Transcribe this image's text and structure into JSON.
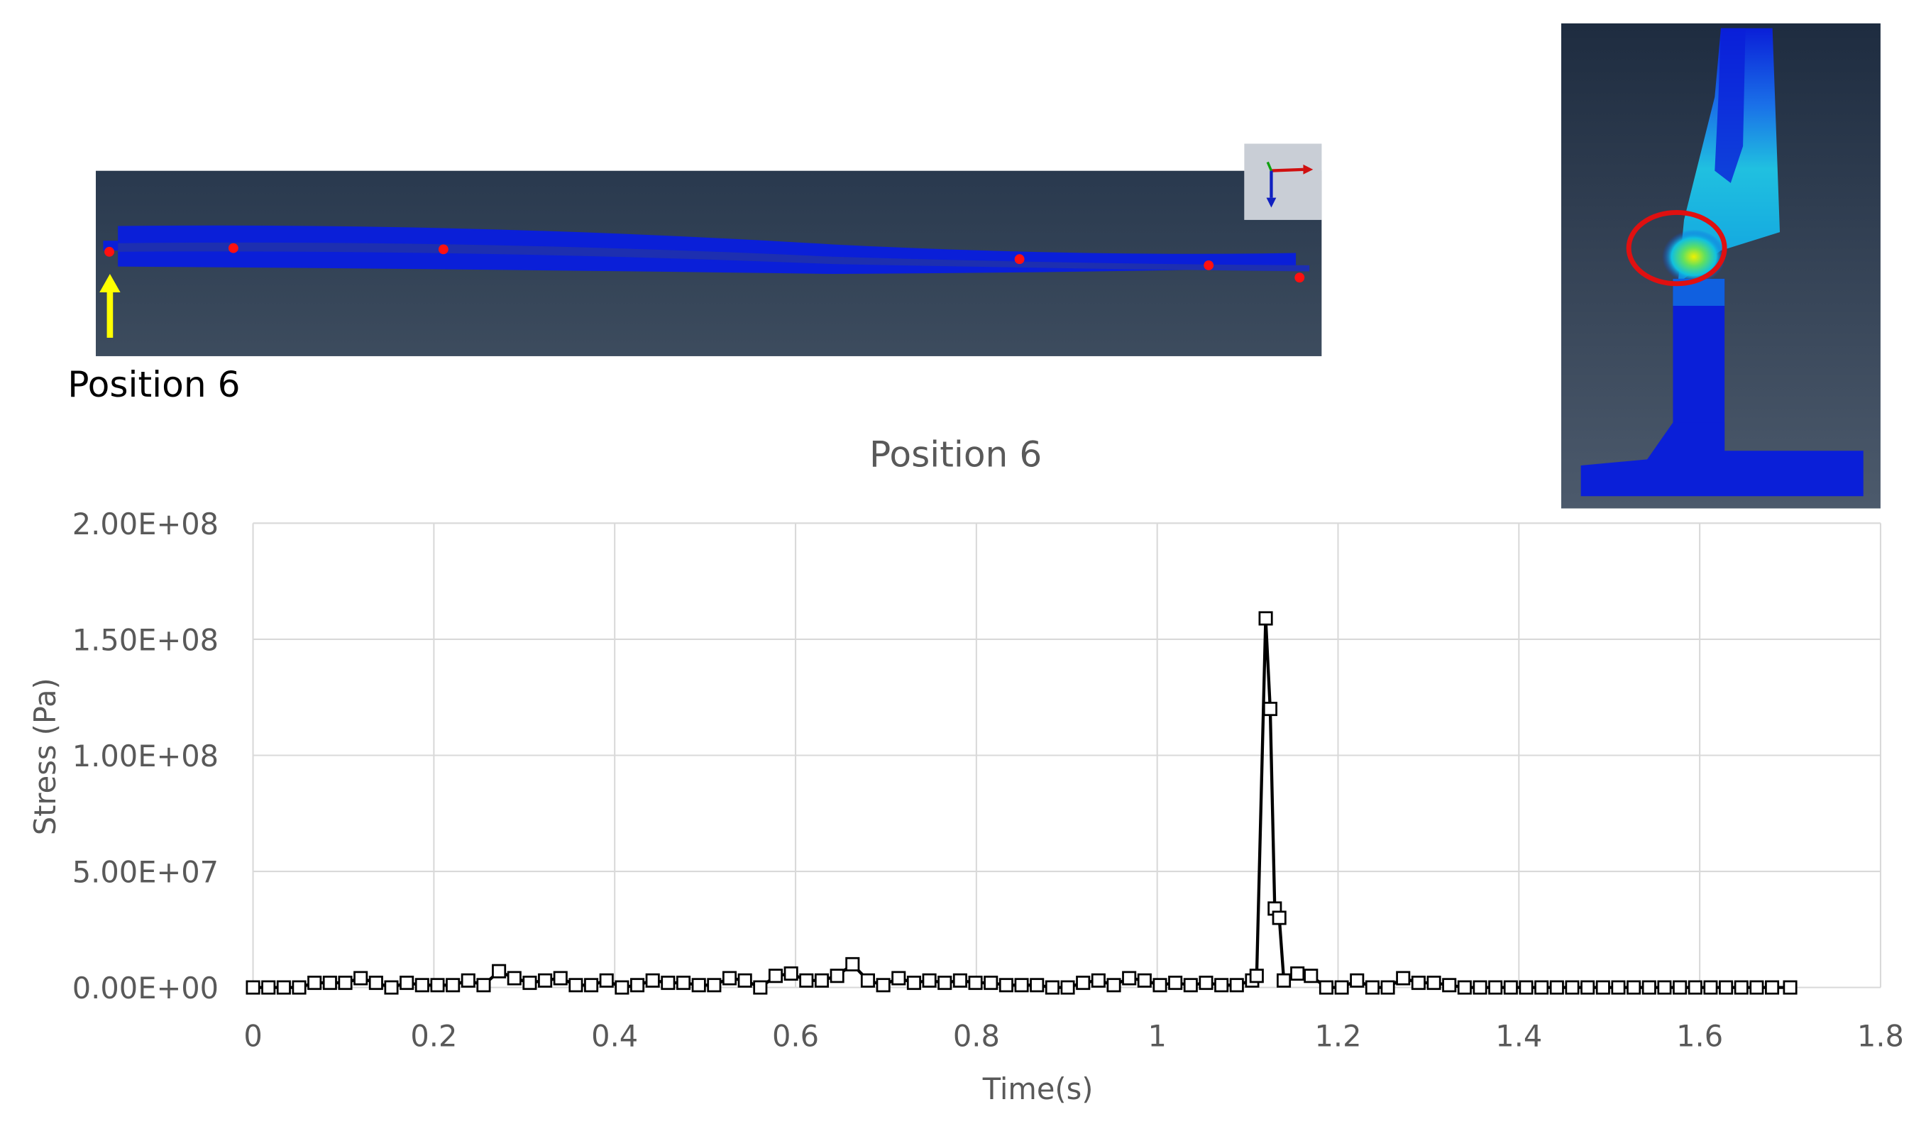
{
  "rail_view": {
    "position_label": "Position 6",
    "triad_axes": [
      "Y",
      "X",
      "Z"
    ],
    "colors": {
      "background_top": "#2a3a50",
      "background_bottom": "#3a4a5c",
      "rail": "#0a1fd8",
      "marker": "#ff1010",
      "arrow": "#ffff00"
    }
  },
  "section_view": {
    "colors": {
      "body": "#0a1fd8",
      "highlight_circle": "#e01010",
      "hot_spot": "#f0f000"
    }
  },
  "chart_data": {
    "type": "line",
    "title": "Position 6",
    "xlabel": "Time(s)",
    "ylabel": "Stress (Pa)",
    "xlim": [
      0,
      1.8
    ],
    "ylim": [
      0,
      200000000
    ],
    "x_ticks": [
      "0",
      "0.2",
      "0.4",
      "0.6",
      "0.8",
      "1",
      "1.2",
      "1.4",
      "1.6",
      "1.8"
    ],
    "y_ticks": [
      "0.00E+00",
      "5.00E+07",
      "1.00E+08",
      "1.50E+08",
      "2.00E+08"
    ],
    "grid": true,
    "marker": "square",
    "series": [
      {
        "x": [
          0,
          0.017,
          0.034,
          0.051,
          0.068,
          0.085,
          0.102,
          0.119,
          0.136,
          0.153,
          0.17,
          0.187,
          0.204,
          0.221,
          0.238,
          0.255,
          0.272,
          0.289,
          0.306,
          0.323,
          0.34,
          0.357,
          0.374,
          0.391,
          0.408,
          0.425,
          0.442,
          0.459,
          0.476,
          0.493,
          0.51,
          0.527,
          0.544,
          0.561,
          0.578,
          0.595,
          0.612,
          0.629,
          0.646,
          0.663,
          0.68,
          0.697,
          0.714,
          0.731,
          0.748,
          0.765,
          0.782,
          0.799,
          0.816,
          0.833,
          0.85,
          0.867,
          0.884,
          0.901,
          0.918,
          0.935,
          0.952,
          0.969,
          0.986,
          1.003,
          1.02,
          1.037,
          1.054,
          1.071,
          1.088,
          1.105,
          1.11,
          1.12,
          1.125,
          1.13,
          1.135,
          1.14,
          1.155,
          1.17,
          1.187,
          1.204,
          1.221,
          1.238,
          1.255,
          1.272,
          1.289,
          1.306,
          1.323,
          1.34,
          1.357,
          1.374,
          1.391,
          1.408,
          1.425,
          1.442,
          1.459,
          1.476,
          1.493,
          1.51,
          1.527,
          1.544,
          1.561,
          1.578,
          1.595,
          1.612,
          1.629,
          1.646,
          1.663,
          1.68,
          1.7
        ],
        "values": [
          0,
          0,
          0,
          0,
          2000000,
          2000000,
          2000000,
          4000000,
          2000000,
          0,
          2000000,
          1000000,
          1000000,
          1000000,
          3000000,
          1000000,
          7000000,
          4000000,
          2000000,
          3000000,
          4000000,
          1000000,
          1000000,
          3000000,
          0,
          1000000,
          3000000,
          2000000,
          2000000,
          1000000,
          1000000,
          4000000,
          3000000,
          0,
          5000000,
          6000000,
          3000000,
          3000000,
          5000000,
          10000000,
          3000000,
          1000000,
          4000000,
          2000000,
          3000000,
          2000000,
          3000000,
          2000000,
          2000000,
          1000000,
          1000000,
          1000000,
          0,
          0,
          2000000,
          3000000,
          1000000,
          4000000,
          3000000,
          1000000,
          2000000,
          1000000,
          2000000,
          1000000,
          1000000,
          3000000,
          5000000,
          159000000,
          120000000,
          34000000,
          30000000,
          3000000,
          6000000,
          5000000,
          0,
          0,
          3000000,
          0,
          0,
          4000000,
          2000000,
          2000000,
          1000000,
          0,
          0,
          0,
          0,
          0,
          0,
          0,
          0,
          0,
          0,
          0,
          0,
          0,
          0,
          0,
          0,
          0,
          0,
          0,
          0,
          0,
          0
        ]
      }
    ]
  }
}
